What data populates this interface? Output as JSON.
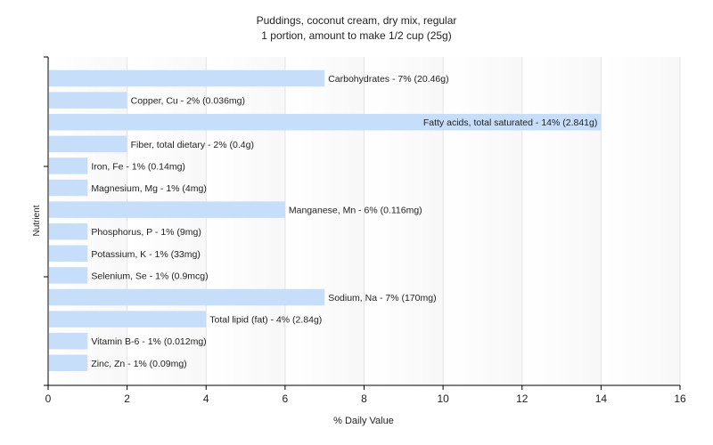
{
  "chart_data": {
    "type": "bar",
    "orientation": "horizontal",
    "title": "Puddings, coconut cream, dry mix, regular",
    "subtitle": "1 portion, amount to make 1/2 cup (25g)",
    "xlabel": "% Daily Value",
    "ylabel": "Nutrient",
    "xlim": [
      0,
      16
    ],
    "xticks": [
      "0",
      "2",
      "4",
      "6",
      "8",
      "10",
      "12",
      "14",
      "16"
    ],
    "grid": true,
    "categories": [
      "Carbohydrates",
      "Copper, Cu",
      "Fatty acids, total saturated",
      "Fiber, total dietary",
      "Iron, Fe",
      "Magnesium, Mg",
      "Manganese, Mn",
      "Phosphorus, P",
      "Potassium, K",
      "Selenium, Se",
      "Sodium, Na",
      "Total lipid (fat)",
      "Vitamin B-6",
      "Zinc, Zn"
    ],
    "values": [
      7,
      2,
      14,
      2,
      1,
      1,
      6,
      1,
      1,
      1,
      7,
      4,
      1,
      1
    ],
    "labels": [
      "Carbohydrates - 7% (20.46g)",
      "Copper, Cu - 2% (0.036mg)",
      "Fatty acids, total saturated - 14% (2.841g)",
      "Fiber, total dietary - 2% (0.4g)",
      "Iron, Fe - 1% (0.14mg)",
      "Magnesium, Mg - 1% (4mg)",
      "Manganese, Mn - 6% (0.116mg)",
      "Phosphorus, P - 1% (9mg)",
      "Potassium, K - 1% (33mg)",
      "Selenium, Se - 1% (0.9mcg)",
      "Sodium, Na - 7% (170mg)",
      "Total lipid (fat) - 4% (2.84g)",
      "Vitamin B-6 - 1% (0.012mg)",
      "Zinc, Zn - 1% (0.09mg)"
    ],
    "bar_color": "#c6defa"
  }
}
